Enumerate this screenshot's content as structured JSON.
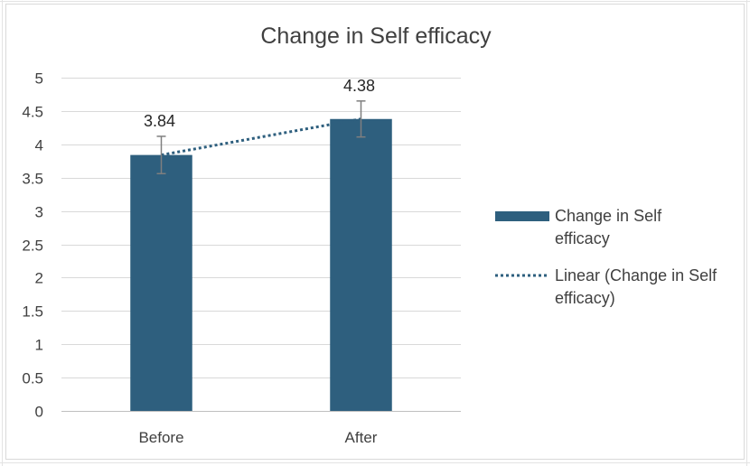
{
  "chart_data": {
    "type": "bar",
    "title": "Change in Self efficacy",
    "categories": [
      "Before",
      "After"
    ],
    "series": [
      {
        "name": "Change in Self efficacy",
        "values": [
          3.84,
          4.38
        ],
        "data_labels": [
          "3.84",
          "4.38"
        ],
        "error_bars": [
          0.28,
          0.27
        ],
        "color": "#2e5f7e"
      }
    ],
    "trendline": {
      "type": "linear",
      "name": "Linear (Change in Self efficacy)",
      "color": "#2e5f7e",
      "style": "dotted"
    },
    "ylim": [
      0,
      5
    ],
    "yticks": [
      "0",
      "0.5",
      "1",
      "1.5",
      "2",
      "2.5",
      "3",
      "3.5",
      "4",
      "4.5",
      "5"
    ],
    "grid": true,
    "legend_position": "right",
    "xlabel": "",
    "ylabel": ""
  },
  "legend": {
    "bar_label_line1": "Change in Self",
    "bar_label_line2": "efficacy",
    "trend_label_line1": "Linear (Change in Self",
    "trend_label_line2": "efficacy)"
  }
}
